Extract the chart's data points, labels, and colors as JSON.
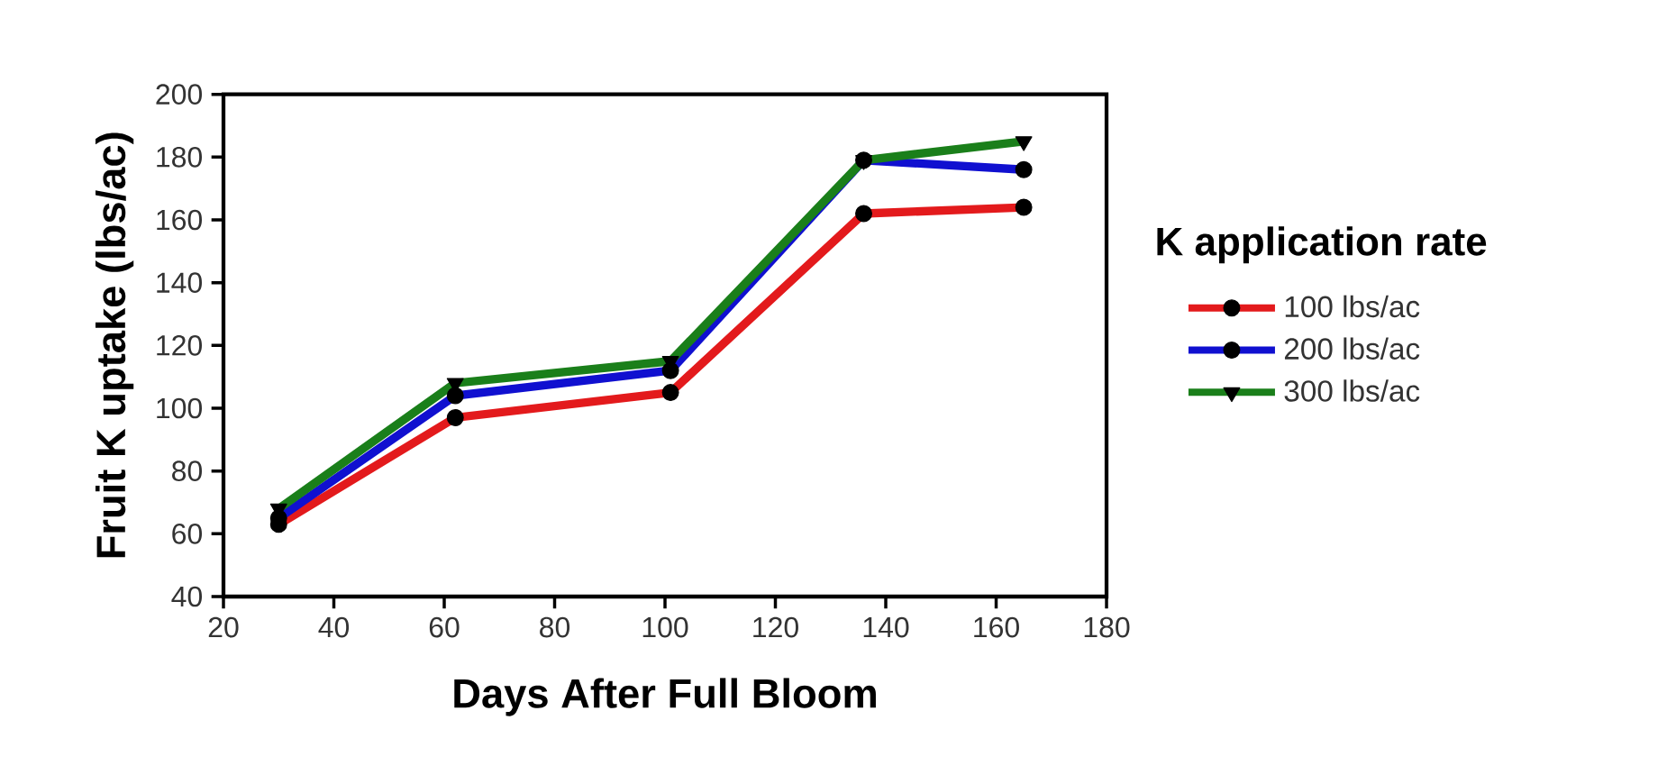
{
  "chart_data": {
    "type": "line",
    "xlabel": "Days After Full Bloom",
    "ylabel": "Fruit K uptake (lbs/ac)",
    "legend_title": "K application rate",
    "x": [
      30,
      62,
      101,
      136,
      165
    ],
    "series": [
      {
        "name": "100 lbs/ac",
        "color": "#e31a1c",
        "marker": "circle",
        "values": [
          63,
          97,
          105,
          162,
          164
        ]
      },
      {
        "name": "200 lbs/ac",
        "color": "#1010d0",
        "marker": "circle",
        "values": [
          65,
          104,
          112,
          179,
          176
        ]
      },
      {
        "name": "300 lbs/ac",
        "color": "#1a7f1a",
        "marker": "triangle",
        "values": [
          68,
          108,
          115,
          179,
          185
        ]
      }
    ],
    "xlim": [
      20,
      180
    ],
    "xticks": [
      20,
      40,
      60,
      80,
      100,
      120,
      140,
      160,
      180
    ],
    "ylim": [
      40,
      200
    ],
    "yticks": [
      40,
      60,
      80,
      100,
      120,
      140,
      160,
      180,
      200
    ],
    "legend": "right",
    "grid": false,
    "line_style": "solid"
  }
}
